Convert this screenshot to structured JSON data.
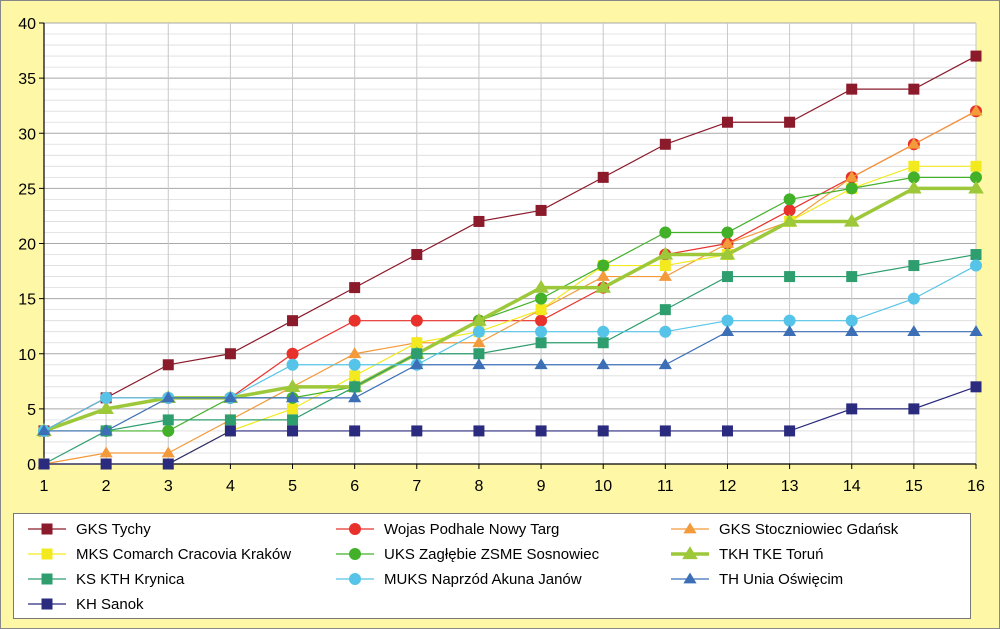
{
  "chart_data": {
    "type": "line",
    "title": "",
    "xlabel": "",
    "ylabel": "",
    "x": [
      1,
      2,
      3,
      4,
      5,
      6,
      7,
      8,
      9,
      10,
      11,
      12,
      13,
      14,
      15,
      16
    ],
    "ylim": [
      0,
      40
    ],
    "yticks": [
      0,
      5,
      10,
      15,
      20,
      25,
      30,
      35,
      40
    ],
    "grid": true,
    "legend_position": "bottom",
    "series": [
      {
        "name": "GKS Tychy",
        "color": "#8b1a2b",
        "marker": "square",
        "values": [
          3,
          6,
          9,
          10,
          13,
          16,
          19,
          22,
          23,
          26,
          29,
          31,
          31,
          34,
          34,
          37
        ]
      },
      {
        "name": "Wojas Podhale Nowy Targ",
        "color": "#e8312a",
        "marker": "circle",
        "values": [
          3,
          6,
          6,
          6,
          10,
          13,
          13,
          13,
          13,
          16,
          19,
          20,
          23,
          26,
          29,
          32
        ]
      },
      {
        "name": "GKS Stoczniowiec Gdańsk",
        "color": "#f39a3b",
        "marker": "triangle",
        "values": [
          0,
          1,
          1,
          4,
          7,
          10,
          11,
          11,
          14,
          17,
          17,
          20,
          22,
          26,
          29,
          32
        ]
      },
      {
        "name": "MKS Comarch Cracovia Kraków",
        "color": "#f2ea1e",
        "marker": "square",
        "values": [
          0,
          0,
          0,
          3,
          5,
          8,
          11,
          12,
          14,
          18,
          18,
          19,
          22,
          25,
          27,
          27
        ]
      },
      {
        "name": "UKS Zagłębie ZSME Sosnowiec",
        "color": "#43b02a",
        "marker": "circle",
        "values": [
          3,
          3,
          3,
          6,
          6,
          7,
          10,
          13,
          15,
          18,
          21,
          21,
          24,
          25,
          26,
          26
        ]
      },
      {
        "name": "TKH TKE Toruń",
        "color": "#9dc83a",
        "marker": "triangle",
        "values": [
          3,
          5,
          6,
          6,
          7,
          7,
          10,
          13,
          16,
          16,
          19,
          19,
          22,
          22,
          25,
          25
        ]
      },
      {
        "name": "KS KTH Krynica",
        "color": "#2e9e6e",
        "marker": "square",
        "values": [
          0,
          3,
          4,
          4,
          4,
          7,
          10,
          10,
          11,
          11,
          14,
          17,
          17,
          17,
          18,
          19
        ]
      },
      {
        "name": "MUKS Naprzód Akuna Janów",
        "color": "#56c4e8",
        "marker": "circle",
        "values": [
          3,
          6,
          6,
          6,
          9,
          9,
          9,
          12,
          12,
          12,
          12,
          13,
          13,
          13,
          15,
          18
        ]
      },
      {
        "name": "TH Unia Oświęcim",
        "color": "#3c6fb6",
        "marker": "triangle",
        "values": [
          3,
          3,
          6,
          6,
          6,
          6,
          9,
          9,
          9,
          9,
          9,
          12,
          12,
          12,
          12,
          12
        ]
      },
      {
        "name": "KH Sanok",
        "color": "#2a2a7e",
        "marker": "square",
        "values": [
          0,
          0,
          0,
          3,
          3,
          3,
          3,
          3,
          3,
          3,
          3,
          3,
          3,
          5,
          5,
          7
        ]
      }
    ]
  }
}
